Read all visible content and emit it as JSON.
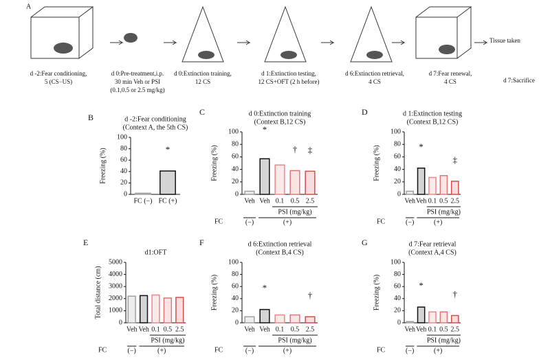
{
  "panel_a": {
    "letter": "A",
    "steps": [
      [
        "d -2:Fear conditioning,",
        "5 (CS−US)"
      ],
      [
        "d 0:Pre-treatment,i.p.",
        "30 min Veh or PSI",
        "(0.1,0.5 or 2.5 mg/kg)"
      ],
      [
        "d 0:Extinction training,",
        "12 CS"
      ],
      [
        "d 1:Extinction testing,",
        "12 CS+OFT (2 h before)"
      ],
      [
        "d 6:Extinction retrieval,",
        "4 CS"
      ],
      [
        "d 7:Fear renewal,",
        "4 CS"
      ],
      [
        "d 7:Sacrifice"
      ]
    ],
    "tissue": "Tissue taken"
  },
  "chart_data": [
    {
      "type": "bar",
      "panel": "B",
      "title": [
        "d -2:Fear conditioning",
        "(Context A, the 5th CS)"
      ],
      "ylabel": "Freezing (%)",
      "categories": [
        "FC (−)",
        "FC (+)"
      ],
      "values": [
        2,
        41
      ],
      "colors": [
        "#9e9e9e",
        "#111111"
      ],
      "annotations": [
        null,
        "*"
      ],
      "ylim": [
        0,
        100
      ],
      "yticks": [
        0,
        20,
        40,
        60,
        80,
        100
      ]
    },
    {
      "type": "bar",
      "panel": "C",
      "title": [
        "d 0:Extinction training",
        "(Context B,12 CS)"
      ],
      "ylabel": "Freezing (%)",
      "categories": [
        "Veh",
        "Veh",
        "0.1",
        "0.5",
        "2.5"
      ],
      "values": [
        5,
        57,
        47,
        38,
        37
      ],
      "colors": [
        "#9e9e9e",
        "#111111",
        "#e88a8a",
        "#e57373",
        "#d94a4a"
      ],
      "annotations": [
        null,
        "*",
        null,
        "†",
        "‡"
      ],
      "ylim": [
        0,
        100
      ],
      "yticks": [
        0,
        20,
        40,
        60,
        80,
        100
      ],
      "group_label": "PSI (mg/kg)",
      "fc_label": "FC",
      "fc_groups": [
        "(−)",
        "(+)"
      ]
    },
    {
      "type": "bar",
      "panel": "D",
      "title": [
        "d 1:Extinction testing",
        "(Context B,12 CS)"
      ],
      "ylabel": "Freezing (%)",
      "categories": [
        "Veh",
        "Veh",
        "0.1",
        "0.5",
        "2.5"
      ],
      "values": [
        5,
        42,
        27,
        30,
        21
      ],
      "colors": [
        "#9e9e9e",
        "#111111",
        "#e88a8a",
        "#e57373",
        "#d94a4a"
      ],
      "annotations": [
        null,
        "*",
        null,
        null,
        "‡"
      ],
      "ylim": [
        0,
        100
      ],
      "yticks": [
        0,
        20,
        40,
        60,
        80,
        100
      ],
      "group_label": "PSI (mg/kg)",
      "fc_label": "FC",
      "fc_groups": [
        "(−)",
        "(+)"
      ]
    },
    {
      "type": "bar",
      "panel": "E",
      "title": [
        "d1:OFT"
      ],
      "ylabel": "Total distance (cm)",
      "categories": [
        "Veh",
        "Veh",
        "0.1",
        "0.5",
        "2.5"
      ],
      "values": [
        2200,
        2250,
        2300,
        2050,
        2100
      ],
      "colors": [
        "#9e9e9e",
        "#111111",
        "#e88a8a",
        "#e57373",
        "#d94a4a"
      ],
      "annotations": [
        null,
        null,
        null,
        null,
        null
      ],
      "ylim": [
        0,
        5000
      ],
      "yticks": [
        0,
        1000,
        2000,
        3000,
        4000,
        5000
      ],
      "group_label": "PSI (mg/kg)",
      "fc_label": "FC",
      "fc_groups": [
        "(−)",
        "(+)"
      ]
    },
    {
      "type": "bar",
      "panel": "F",
      "title": [
        "d 6:Extinction retrieval",
        "(Context B,4 CS)"
      ],
      "ylabel": "Freezing (%)",
      "categories": [
        "Veh",
        "Veh",
        "0.1",
        "0.5",
        "2.5"
      ],
      "values": [
        10,
        22,
        13,
        13,
        10
      ],
      "colors": [
        "#9e9e9e",
        "#111111",
        "#e88a8a",
        "#e57373",
        "#d94a4a"
      ],
      "annotations": [
        null,
        "*",
        null,
        null,
        "†"
      ],
      "ylim": [
        0,
        100
      ],
      "yticks": [
        0,
        20,
        40,
        60,
        80,
        100
      ],
      "group_label": "PSI (mg/kg)",
      "fc_label": "FC",
      "fc_groups": [
        "(−)",
        "(+)"
      ]
    },
    {
      "type": "bar",
      "panel": "G",
      "title": [
        "d 7:Fear retrieval",
        "(Context A,4 CS)"
      ],
      "ylabel": "Freezing (%)",
      "categories": [
        "Veh",
        "Veh",
        "0.1",
        "0.5",
        "2.5"
      ],
      "values": [
        2,
        26,
        18,
        18,
        12
      ],
      "colors": [
        "#9e9e9e",
        "#111111",
        "#e88a8a",
        "#e57373",
        "#d94a4a"
      ],
      "annotations": [
        null,
        "*",
        null,
        null,
        "†"
      ],
      "ylim": [
        0,
        100
      ],
      "yticks": [
        0,
        20,
        40,
        60,
        80,
        100
      ],
      "group_label": "PSI (mg/kg)",
      "fc_label": "FC",
      "fc_groups": [
        "(−)",
        "(+)"
      ]
    }
  ]
}
